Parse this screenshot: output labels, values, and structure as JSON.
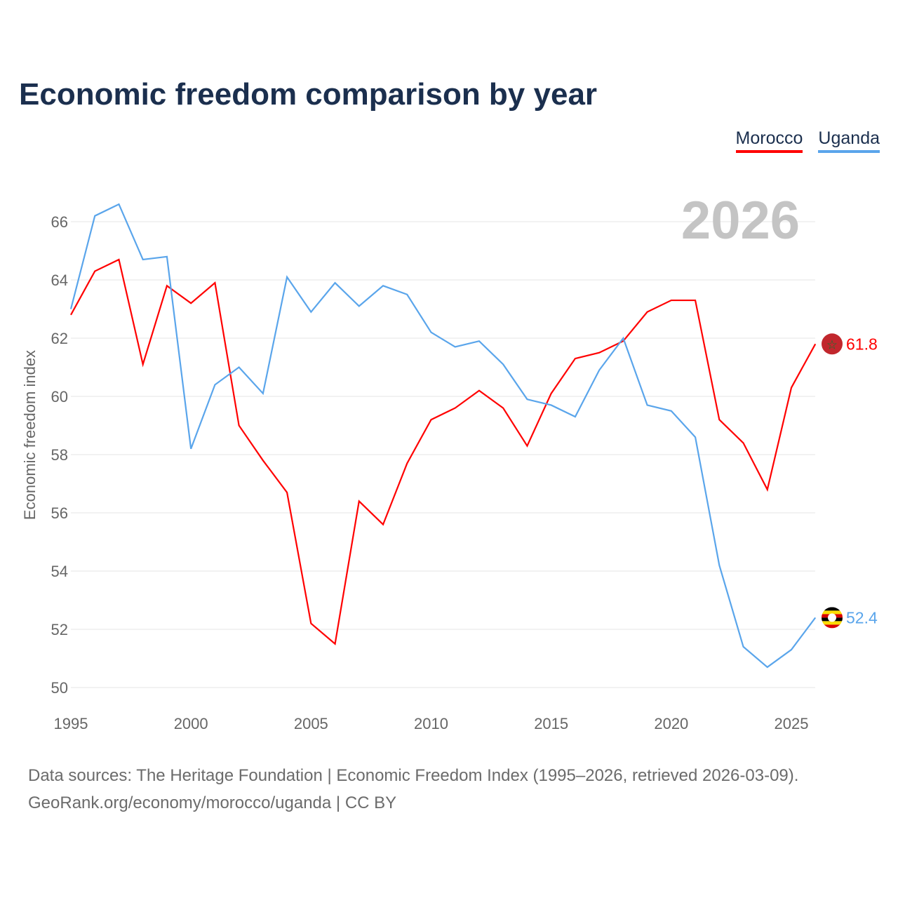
{
  "chart_data": {
    "type": "line",
    "title": "Economic freedom comparison by year",
    "xlabel": "",
    "ylabel": "Economic freedom index",
    "xlim": [
      1995,
      2026
    ],
    "ylim": [
      50,
      67.5
    ],
    "xticks": [
      1995,
      2000,
      2005,
      2010,
      2015,
      2020,
      2025
    ],
    "yticks": [
      50,
      52,
      54,
      56,
      58,
      60,
      62,
      64,
      66
    ],
    "grid": true,
    "legend_position": "top-right",
    "year_watermark": "2026",
    "x": [
      1995,
      1996,
      1997,
      1998,
      1999,
      2000,
      2001,
      2002,
      2003,
      2004,
      2005,
      2006,
      2007,
      2008,
      2009,
      2010,
      2011,
      2012,
      2013,
      2014,
      2015,
      2016,
      2017,
      2018,
      2019,
      2020,
      2021,
      2022,
      2023,
      2024,
      2025,
      2026
    ],
    "series": [
      {
        "name": "Morocco",
        "color": "#ff0000",
        "end_label": "61.8",
        "values": [
          62.8,
          64.3,
          64.7,
          61.1,
          63.8,
          63.2,
          63.9,
          59.0,
          57.8,
          56.7,
          52.2,
          51.5,
          56.4,
          55.6,
          57.7,
          59.2,
          59.6,
          60.2,
          59.6,
          58.3,
          60.1,
          61.3,
          61.5,
          61.9,
          62.9,
          63.3,
          63.3,
          59.2,
          58.4,
          56.8,
          60.3,
          61.8
        ]
      },
      {
        "name": "Uganda",
        "color": "#5aa5eb",
        "end_label": "52.4",
        "values": [
          63.0,
          66.2,
          66.6,
          64.7,
          64.8,
          58.2,
          60.4,
          61.0,
          60.1,
          64.1,
          62.9,
          63.9,
          63.1,
          63.8,
          63.5,
          62.2,
          61.7,
          61.9,
          61.1,
          59.9,
          59.7,
          59.3,
          60.9,
          62.0,
          59.7,
          59.5,
          58.6,
          54.2,
          51.4,
          50.7,
          51.3,
          52.4
        ]
      }
    ]
  },
  "footer": {
    "line1": "Data sources: The Heritage Foundation | Economic Freedom Index (1995–2026, retrieved 2026-03-09).",
    "line2": "GeoRank.org/economy/morocco/uganda | CC BY"
  }
}
